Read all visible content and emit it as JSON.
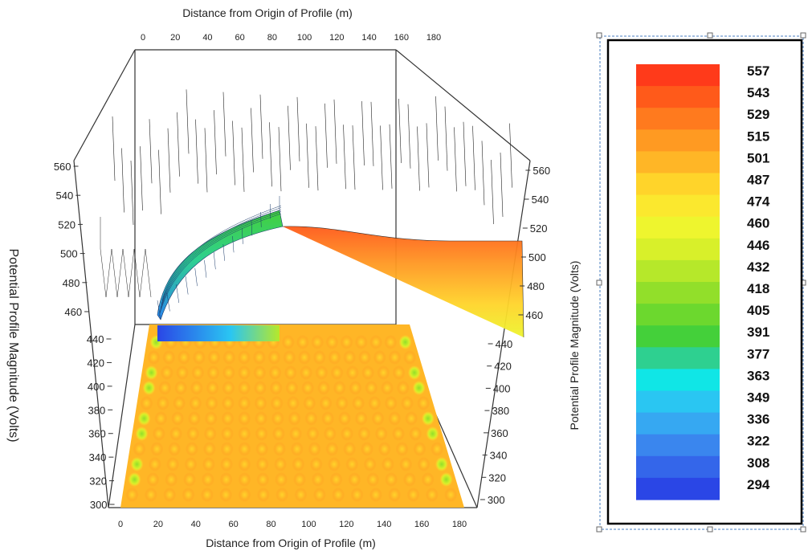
{
  "chart_data": {
    "type": "surface",
    "title": "",
    "top_axis_title": "Distance from Origin of Profile (m)",
    "bottom_axis_title": "Distance from Origin of Profile (m)",
    "left_axis_title": "Potential Profile Magnitude (Volts)",
    "right_axis_title": "Potential Profile Magnitude (Volts)",
    "x_ticks": [
      0,
      20,
      40,
      60,
      80,
      100,
      120,
      140,
      160,
      180
    ],
    "left_upper_ticks": [
      460,
      480,
      500,
      520,
      540,
      560
    ],
    "left_lower_ticks": [
      300,
      320,
      340,
      360,
      380,
      400,
      420,
      440
    ],
    "right_upper_ticks": [
      460,
      480,
      500,
      520,
      540,
      560
    ],
    "right_lower_ticks": [
      300,
      320,
      340,
      360,
      380,
      400,
      420,
      440
    ],
    "xlim": [
      0,
      180
    ],
    "zlim": [
      300,
      560
    ],
    "colorbar": {
      "labels": [
        557,
        543,
        529,
        515,
        501,
        487,
        474,
        460,
        446,
        432,
        418,
        405,
        391,
        377,
        363,
        349,
        336,
        322,
        308,
        294
      ],
      "colors": [
        "#ff3a1a",
        "#ff5a1a",
        "#ff7a1e",
        "#ff9a22",
        "#ffb626",
        "#ffd42a",
        "#fbe82e",
        "#eef52e",
        "#d8f02a",
        "#b6e82a",
        "#92df2a",
        "#6cd82e",
        "#44d03a",
        "#2ed090",
        "#10e6e6",
        "#2ac6f2",
        "#36a8f2",
        "#3a86ee",
        "#3466ea",
        "#2a46e6"
      ]
    }
  }
}
